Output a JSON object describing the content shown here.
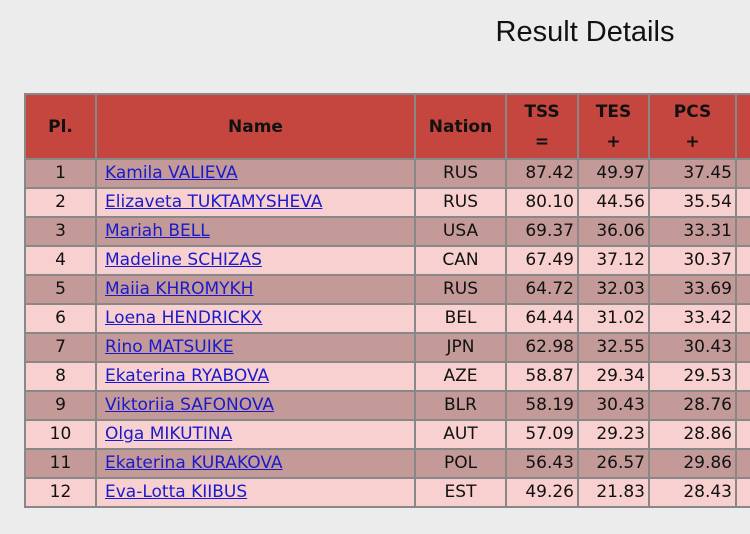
{
  "title": "Result Details",
  "table": {
    "headers": [
      {
        "label": "Pl."
      },
      {
        "label": "Name"
      },
      {
        "label": "Nation"
      },
      {
        "label": "TSS",
        "symbol": "="
      },
      {
        "label": "TES",
        "symbol": "+"
      },
      {
        "label": "PCS",
        "symbol": "+"
      }
    ],
    "rows": [
      [
        "1",
        "Kamila VALIEVA",
        "RUS",
        "87.42",
        "49.97",
        "37.45"
      ],
      [
        "2",
        "Elizaveta TUKTAMYSHEVA",
        "RUS",
        "80.10",
        "44.56",
        "35.54"
      ],
      [
        "3",
        "Mariah BELL",
        "USA",
        "69.37",
        "36.06",
        "33.31"
      ],
      [
        "4",
        "Madeline SCHIZAS",
        "CAN",
        "67.49",
        "37.12",
        "30.37"
      ],
      [
        "5",
        "Maiia KHROMYKH",
        "RUS",
        "64.72",
        "32.03",
        "33.69"
      ],
      [
        "6",
        "Loena HENDRICKX",
        "BEL",
        "64.44",
        "31.02",
        "33.42"
      ],
      [
        "7",
        "Rino MATSUIKE",
        "JPN",
        "62.98",
        "32.55",
        "30.43"
      ],
      [
        "8",
        "Ekaterina RYABOVA",
        "AZE",
        "58.87",
        "29.34",
        "29.53"
      ],
      [
        "9",
        "Viktoriia SAFONOVA",
        "BLR",
        "58.19",
        "30.43",
        "28.76"
      ],
      [
        "10",
        "Olga MIKUTINA",
        "AUT",
        "57.09",
        "29.23",
        "28.86"
      ],
      [
        "11",
        "Ekaterina KURAKOVA",
        "POL",
        "56.43",
        "26.57",
        "29.86"
      ],
      [
        "12",
        "Eva-Lotta KIIBUS",
        "EST",
        "49.26",
        "21.83",
        "28.43"
      ]
    ]
  }
}
